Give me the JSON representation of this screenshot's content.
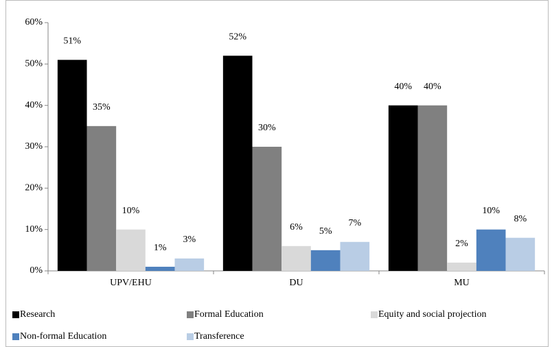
{
  "chart_data": {
    "type": "bar",
    "categories": [
      "UPV/EHU",
      "DU",
      "MU"
    ],
    "series": [
      {
        "name": "Research",
        "color": "#000000",
        "values": [
          51,
          52,
          40
        ],
        "value_labels": [
          "51%",
          "52%",
          "40%"
        ]
      },
      {
        "name": "Formal Education",
        "color": "#808080",
        "values": [
          35,
          30,
          40
        ],
        "value_labels": [
          "35%",
          "30%",
          "40%"
        ]
      },
      {
        "name": "Equity and social projection",
        "color": "#d9d9d9",
        "values": [
          10,
          6,
          2
        ],
        "value_labels": [
          "10%",
          "6%",
          "2%"
        ]
      },
      {
        "name": "Non-formal Education",
        "color": "#4f81bd",
        "values": [
          1,
          5,
          10
        ],
        "value_labels": [
          "1%",
          "5%",
          "10%"
        ]
      },
      {
        "name": "Transference",
        "color": "#b9cde5",
        "values": [
          3,
          7,
          8
        ],
        "value_labels": [
          "3%",
          "7%",
          "8%"
        ]
      }
    ],
    "ylim": [
      0,
      60
    ],
    "yticks": [
      {
        "value": 0,
        "label": "0%"
      },
      {
        "value": 10,
        "label": "10%"
      },
      {
        "value": 20,
        "label": "20%"
      },
      {
        "value": 30,
        "label": "30%"
      },
      {
        "value": 40,
        "label": "40%"
      },
      {
        "value": 50,
        "label": "50%"
      },
      {
        "value": 60,
        "label": "60%"
      }
    ],
    "grid": false,
    "legend": "bottom"
  }
}
